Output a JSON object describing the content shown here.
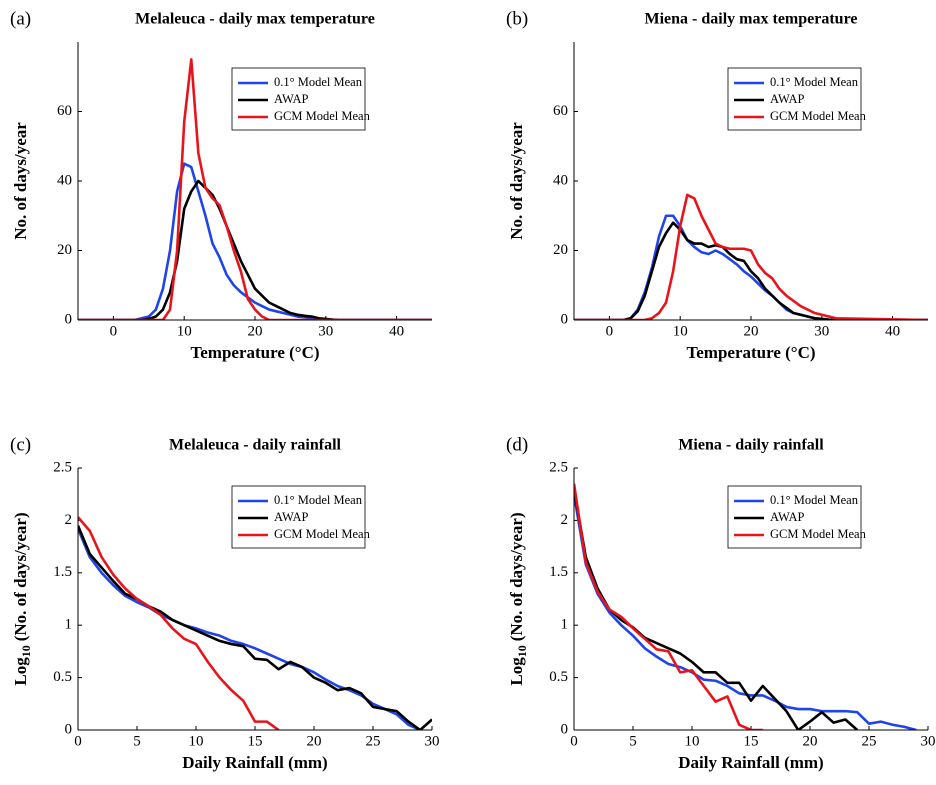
{
  "chart_data": [
    {
      "type": "line",
      "panel_label": "(a)",
      "title": "Melaleuca - daily max temperature",
      "x_label": "Temperature (°C)",
      "y_label": "No. of days/year",
      "x": [
        -5,
        2,
        3,
        4,
        5,
        6,
        7,
        8,
        9,
        10,
        11,
        12,
        13,
        14,
        15,
        16,
        17,
        18,
        19,
        20,
        21,
        22,
        23,
        24,
        25,
        26,
        27,
        28,
        29,
        30,
        31,
        32,
        45
      ],
      "series": [
        {
          "name": "0.1° Model Mean",
          "color": "#1f45e8",
          "values": [
            0,
            0,
            0,
            0.5,
            1,
            3,
            9,
            20,
            37,
            45,
            44,
            37,
            30,
            22,
            18,
            13,
            10,
            8,
            6.5,
            5,
            4,
            3,
            2.5,
            2,
            1.5,
            1,
            0.8,
            0.5,
            0.3,
            0.2,
            0.1,
            0,
            0
          ]
        },
        {
          "name": "AWAP",
          "color": "#000000",
          "values": [
            0,
            0,
            0,
            0,
            0.3,
            1,
            3,
            8,
            17,
            32,
            37,
            40,
            38,
            36,
            32,
            27,
            22,
            17,
            13,
            9,
            7,
            5,
            4,
            3,
            2,
            1.5,
            1.2,
            1,
            0.5,
            0.3,
            0.1,
            0,
            0
          ]
        },
        {
          "name": "GCM Model Mean",
          "color": "#e8141c",
          "values": [
            0,
            0,
            0,
            0,
            0,
            0,
            0,
            3,
            20,
            57,
            75,
            48,
            38,
            35,
            33,
            27,
            20,
            14,
            6,
            3,
            1,
            0,
            0,
            0,
            0,
            0,
            0,
            0,
            0,
            0,
            0,
            0,
            0
          ]
        }
      ],
      "xlim": [
        -5,
        45
      ],
      "ylim": [
        0,
        80
      ],
      "xticks": [
        0,
        10,
        20,
        30,
        40
      ],
      "yticks": [
        0,
        20,
        40,
        60
      ],
      "legend": "upper right"
    },
    {
      "type": "line",
      "panel_label": "(b)",
      "title": "Miena - daily max temperature",
      "x_label": "Temperature (°C)",
      "y_label": "No. of days/year",
      "x": [
        -5,
        2,
        3,
        4,
        5,
        6,
        7,
        8,
        9,
        10,
        11,
        12,
        13,
        14,
        15,
        16,
        17,
        18,
        19,
        20,
        21,
        22,
        23,
        24,
        25,
        26,
        27,
        28,
        29,
        30,
        31,
        32,
        45
      ],
      "series": [
        {
          "name": "0.1° Model Mean",
          "color": "#1f45e8",
          "values": [
            0,
            0,
            0.5,
            3,
            8,
            15,
            24,
            30,
            30,
            27,
            23,
            21,
            19.5,
            19,
            20,
            19,
            17.5,
            16,
            14,
            12.5,
            10.5,
            8.5,
            7,
            5,
            3,
            2,
            1.5,
            1,
            0.5,
            0.3,
            0.1,
            0,
            0
          ]
        },
        {
          "name": "AWAP",
          "color": "#000000",
          "values": [
            0,
            0,
            0.5,
            2.5,
            7,
            14,
            21,
            25,
            28,
            26,
            23,
            22,
            22,
            21,
            21.5,
            21,
            19,
            17.5,
            17,
            14,
            12,
            9,
            7,
            5,
            3.5,
            2,
            1.5,
            1,
            0.5,
            0.3,
            0.1,
            0,
            0
          ]
        },
        {
          "name": "GCM Model Mean",
          "color": "#e8141c",
          "values": [
            0,
            0,
            0,
            0,
            0,
            0.5,
            2,
            5,
            14,
            27,
            36,
            35,
            30,
            26,
            22,
            21,
            20.5,
            20.5,
            20.5,
            20,
            16,
            13.5,
            12,
            9,
            7,
            5.5,
            4,
            3,
            2,
            1.5,
            1,
            0.5,
            0
          ]
        }
      ],
      "xlim": [
        -5,
        45
      ],
      "ylim": [
        0,
        80
      ],
      "xticks": [
        0,
        10,
        20,
        30,
        40
      ],
      "yticks": [
        0,
        20,
        40,
        60
      ],
      "legend": "upper right"
    },
    {
      "type": "line",
      "panel_label": "(c)",
      "title": "Melaleuca - daily rainfall",
      "x_label": "Daily Rainfall (mm)",
      "y_label": [
        "Log",
        "10",
        "(No. of days/year)"
      ],
      "x": [
        0,
        1,
        2,
        3,
        4,
        5,
        6,
        7,
        8,
        9,
        10,
        11,
        12,
        13,
        14,
        15,
        16,
        17,
        18,
        19,
        20,
        21,
        22,
        23,
        24,
        25,
        26,
        27,
        28,
        29,
        30
      ],
      "series": [
        {
          "name": "0.1° Model Mean",
          "color": "#1f45e8",
          "values": [
            1.92,
            1.65,
            1.5,
            1.38,
            1.28,
            1.22,
            1.17,
            1.1,
            1.05,
            1,
            0.97,
            0.93,
            0.9,
            0.85,
            0.82,
            0.78,
            0.73,
            0.68,
            0.63,
            0.6,
            0.55,
            0.48,
            0.42,
            0.38,
            0.33,
            0.25,
            0.2,
            0.15,
            0.05,
            0,
            null
          ]
        },
        {
          "name": "AWAP",
          "color": "#000000",
          "values": [
            1.95,
            1.68,
            1.55,
            1.42,
            1.3,
            1.25,
            1.18,
            1.13,
            1.05,
            1,
            0.95,
            0.9,
            0.85,
            0.82,
            0.8,
            0.68,
            0.67,
            0.58,
            0.65,
            0.6,
            0.5,
            0.45,
            0.38,
            0.4,
            0.35,
            0.22,
            0.2,
            0.18,
            0.08,
            0,
            0.1
          ]
        },
        {
          "name": "GCM Model Mean",
          "color": "#e8141c",
          "values": [
            2.03,
            1.9,
            1.65,
            1.48,
            1.35,
            1.25,
            1.18,
            1.1,
            0.97,
            0.87,
            0.82,
            0.65,
            0.5,
            0.38,
            0.28,
            0.08,
            0.08,
            0,
            null,
            null,
            null,
            null,
            null,
            null,
            null,
            null,
            null,
            null,
            null,
            null,
            null
          ]
        }
      ],
      "xlim": [
        0,
        30
      ],
      "ylim": [
        0,
        2.5
      ],
      "xticks": [
        0,
        5,
        10,
        15,
        20,
        25,
        30
      ],
      "yticks": [
        0,
        0.5,
        1,
        1.5,
        2,
        2.5
      ],
      "legend": "upper right"
    },
    {
      "type": "line",
      "panel_label": "(d)",
      "title": "Miena - daily rainfall",
      "x_label": "Daily Rainfall (mm)",
      "y_label": [
        "Log",
        "10",
        "(No. of days/year)"
      ],
      "x": [
        0,
        1,
        2,
        3,
        4,
        5,
        6,
        7,
        8,
        9,
        10,
        11,
        12,
        13,
        14,
        15,
        16,
        17,
        18,
        19,
        20,
        21,
        22,
        23,
        24,
        25,
        26,
        27,
        28,
        29,
        30
      ],
      "series": [
        {
          "name": "0.1° Model Mean",
          "color": "#1f45e8",
          "values": [
            2.25,
            1.58,
            1.3,
            1.12,
            1,
            0.9,
            0.78,
            0.7,
            0.63,
            0.6,
            0.55,
            0.48,
            0.47,
            0.42,
            0.35,
            0.33,
            0.33,
            0.28,
            0.22,
            0.2,
            0.2,
            0.18,
            0.18,
            0.18,
            0.17,
            0.06,
            0.08,
            0.05,
            0.03,
            0,
            null
          ]
        },
        {
          "name": "AWAP",
          "color": "#000000",
          "values": [
            2.3,
            1.65,
            1.35,
            1.15,
            1.05,
            0.98,
            0.88,
            0.83,
            0.78,
            0.73,
            0.65,
            0.55,
            0.55,
            0.45,
            0.45,
            0.28,
            0.42,
            0.3,
            0.18,
            0,
            0.08,
            0.17,
            0.07,
            0.1,
            0,
            null,
            null,
            null,
            null,
            null,
            null
          ]
        },
        {
          "name": "GCM Model Mean",
          "color": "#e8141c",
          "values": [
            2.35,
            1.6,
            1.32,
            1.15,
            1.08,
            0.97,
            0.87,
            0.77,
            0.75,
            0.55,
            0.57,
            0.42,
            0.27,
            0.32,
            0.05,
            0,
            0,
            null,
            null,
            null,
            null,
            null,
            null,
            null,
            null,
            null,
            null,
            null,
            null,
            null,
            null
          ]
        }
      ],
      "xlim": [
        0,
        30
      ],
      "ylim": [
        0,
        2.5
      ],
      "xticks": [
        0,
        5,
        10,
        15,
        20,
        25,
        30
      ],
      "yticks": [
        0,
        0.5,
        1,
        1.5,
        2,
        2.5
      ],
      "legend": "upper right"
    }
  ]
}
